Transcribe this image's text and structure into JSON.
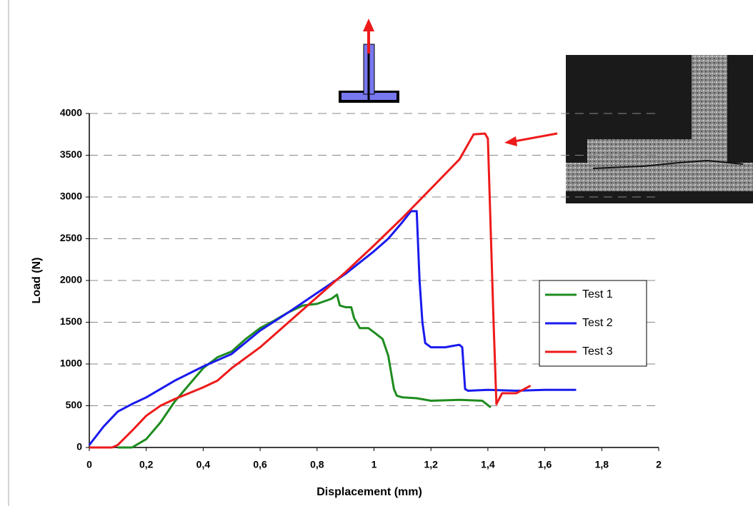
{
  "chart_data": {
    "type": "line",
    "x_label": "Displacement (mm)",
    "y_label": "Load (N)",
    "xlim": [
      0,
      2
    ],
    "xticks": [
      0,
      {
        "value": 0.2,
        "label": "0,2"
      },
      {
        "value": 0.4,
        "label": "0,4"
      },
      {
        "value": 0.6,
        "label": "0,6"
      },
      {
        "value": 0.8,
        "label": "0,8"
      },
      1,
      {
        "value": 1.2,
        "label": "1,2"
      },
      {
        "value": 1.4,
        "label": "1,4"
      },
      {
        "value": 1.6,
        "label": "1,6"
      },
      {
        "value": 1.8,
        "label": "1,8"
      },
      2
    ],
    "ylim": [
      0,
      4000
    ],
    "yticks": [
      0,
      500,
      1000,
      1500,
      2000,
      2500,
      3000,
      3500,
      4000
    ],
    "grid": true,
    "legend": "right",
    "series": [
      {
        "name": "Test 1",
        "color": "#1e8c1e",
        "x": [
          0.1,
          0.15,
          0.2,
          0.25,
          0.3,
          0.35,
          0.4,
          0.45,
          0.5,
          0.55,
          0.6,
          0.65,
          0.7,
          0.75,
          0.8,
          0.85,
          0.87,
          0.88,
          0.9,
          0.92,
          0.93,
          0.95,
          0.98,
          1.0,
          1.03,
          1.05,
          1.06,
          1.07,
          1.08,
          1.1,
          1.15,
          1.2,
          1.3,
          1.38,
          1.41
        ],
        "values": [
          0,
          0,
          100,
          300,
          550,
          750,
          950,
          1080,
          1150,
          1300,
          1430,
          1520,
          1620,
          1700,
          1720,
          1780,
          1830,
          1700,
          1680,
          1680,
          1550,
          1430,
          1430,
          1380,
          1300,
          1100,
          900,
          700,
          620,
          600,
          590,
          560,
          570,
          560,
          480
        ]
      },
      {
        "name": "Test 2",
        "color": "#1a1aee",
        "x": [
          0,
          0.05,
          0.1,
          0.15,
          0.2,
          0.3,
          0.4,
          0.5,
          0.6,
          0.7,
          0.8,
          0.9,
          1.0,
          1.05,
          1.1,
          1.13,
          1.15,
          1.16,
          1.17,
          1.18,
          1.2,
          1.25,
          1.3,
          1.31,
          1.32,
          1.33,
          1.4,
          1.5,
          1.6,
          1.71
        ],
        "values": [
          30,
          250,
          430,
          520,
          600,
          800,
          970,
          1120,
          1400,
          1620,
          1850,
          2080,
          2350,
          2500,
          2700,
          2830,
          2830,
          2000,
          1500,
          1250,
          1200,
          1200,
          1230,
          1200,
          700,
          680,
          690,
          680,
          690,
          690
        ]
      },
      {
        "name": "Test 3",
        "color": "#ee1a1a",
        "x": [
          0,
          0.08,
          0.1,
          0.15,
          0.2,
          0.25,
          0.3,
          0.35,
          0.4,
          0.45,
          0.5,
          0.6,
          0.7,
          0.8,
          0.9,
          1.0,
          1.1,
          1.2,
          1.3,
          1.35,
          1.39,
          1.4,
          1.42,
          1.43,
          1.45,
          1.5,
          1.55
        ],
        "values": [
          0,
          0,
          30,
          200,
          380,
          500,
          580,
          650,
          720,
          800,
          950,
          1200,
          1500,
          1800,
          2100,
          2420,
          2750,
          3100,
          3450,
          3750,
          3760,
          3700,
          1500,
          520,
          650,
          650,
          740
        ]
      }
    ]
  }
}
